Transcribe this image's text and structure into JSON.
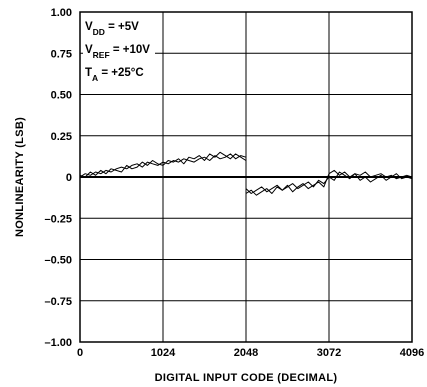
{
  "chart_data": {
    "type": "line",
    "xlabel": "DIGITAL INPUT CODE (DECIMAL)",
    "ylabel": "NONLINEARITY (LSB)",
    "xlim": [
      0,
      4096
    ],
    "ylim": [
      -1.0,
      1.0
    ],
    "x_ticks": [
      0,
      1024,
      2048,
      3072,
      4096
    ],
    "x_tick_labels": [
      "0",
      "1024",
      "2048",
      "3072",
      "4096"
    ],
    "y_ticks": [
      1.0,
      0.75,
      0.5,
      0.25,
      0,
      -0.25,
      -0.5,
      -0.75,
      -1.0
    ],
    "y_tick_labels": [
      "1.00",
      "0.75",
      "0.50",
      "0.25",
      "0",
      "–0.25",
      "–0.50",
      "–0.75",
      "–1.00"
    ],
    "grid": true,
    "annotations": [
      {
        "main": "V",
        "sub": "DD",
        "rest": " = +5V"
      },
      {
        "main": "V",
        "sub": "REF",
        "rest": " = +10V"
      },
      {
        "main": "T",
        "sub": "A",
        "rest": " = +25°C"
      }
    ],
    "series": [
      {
        "x": [
          0,
          64,
          128,
          192,
          256,
          320,
          384,
          448,
          512,
          576,
          640,
          704,
          768,
          832,
          896,
          960,
          1024,
          1088,
          1152,
          1216,
          1280,
          1344,
          1408,
          1472,
          1536,
          1600,
          1664,
          1728,
          1792,
          1856,
          1920,
          1984,
          2047
        ],
        "y": [
          0.0,
          0.02,
          0.01,
          0.03,
          0.02,
          0.04,
          0.03,
          0.05,
          0.06,
          0.05,
          0.07,
          0.08,
          0.06,
          0.09,
          0.08,
          0.07,
          0.09,
          0.08,
          0.1,
          0.09,
          0.11,
          0.1,
          0.09,
          0.11,
          0.12,
          0.1,
          0.13,
          0.11,
          0.12,
          0.14,
          0.11,
          0.13,
          0.12
        ]
      },
      {
        "x": [
          0,
          64,
          128,
          192,
          256,
          320,
          384,
          448,
          512,
          576,
          640,
          704,
          768,
          832,
          896,
          960,
          1024,
          1088,
          1152,
          1216,
          1280,
          1344,
          1408,
          1472,
          1536,
          1600,
          1664,
          1728,
          1792,
          1856,
          1920,
          1984,
          2047
        ],
        "y": [
          0.01,
          0.0,
          0.03,
          0.01,
          0.04,
          0.02,
          0.05,
          0.04,
          0.03,
          0.07,
          0.05,
          0.06,
          0.09,
          0.07,
          0.1,
          0.08,
          0.07,
          0.1,
          0.09,
          0.11,
          0.08,
          0.12,
          0.11,
          0.13,
          0.1,
          0.14,
          0.12,
          0.15,
          0.13,
          0.11,
          0.14,
          0.12,
          0.1
        ]
      },
      {
        "x": [
          2048,
          2112,
          2176,
          2240,
          2304,
          2368,
          2432,
          2496,
          2560,
          2624,
          2688,
          2752,
          2816,
          2880,
          2944,
          3008,
          3072,
          3136,
          3200,
          3264,
          3328,
          3392,
          3456,
          3520,
          3584,
          3648,
          3712,
          3776,
          3840,
          3904,
          3968,
          4032,
          4095
        ],
        "y": [
          -0.1,
          -0.08,
          -0.11,
          -0.09,
          -0.07,
          -0.1,
          -0.06,
          -0.08,
          -0.05,
          -0.09,
          -0.06,
          -0.04,
          -0.07,
          -0.05,
          -0.03,
          -0.06,
          0.02,
          0.04,
          0.01,
          0.03,
          0.0,
          0.02,
          0.01,
          0.03,
          0.0,
          0.01,
          0.02,
          0.0,
          0.01,
          -0.01,
          0.0,
          0.01,
          0.0
        ]
      },
      {
        "x": [
          2048,
          2112,
          2176,
          2240,
          2304,
          2368,
          2432,
          2496,
          2560,
          2624,
          2688,
          2752,
          2816,
          2880,
          2944,
          3008,
          3072,
          3136,
          3200,
          3264,
          3328,
          3392,
          3456,
          3520,
          3584,
          3648,
          3712,
          3776,
          3840,
          3904,
          3968,
          4032,
          4095
        ],
        "y": [
          -0.07,
          -0.1,
          -0.08,
          -0.06,
          -0.09,
          -0.07,
          -0.05,
          -0.08,
          -0.06,
          -0.04,
          -0.07,
          -0.05,
          -0.03,
          -0.06,
          -0.02,
          -0.04,
          0.0,
          -0.02,
          0.03,
          0.01,
          -0.01,
          0.02,
          -0.02,
          0.0,
          -0.03,
          -0.01,
          0.01,
          -0.02,
          0.0,
          0.02,
          -0.01,
          0.0,
          -0.01
        ]
      }
    ]
  }
}
